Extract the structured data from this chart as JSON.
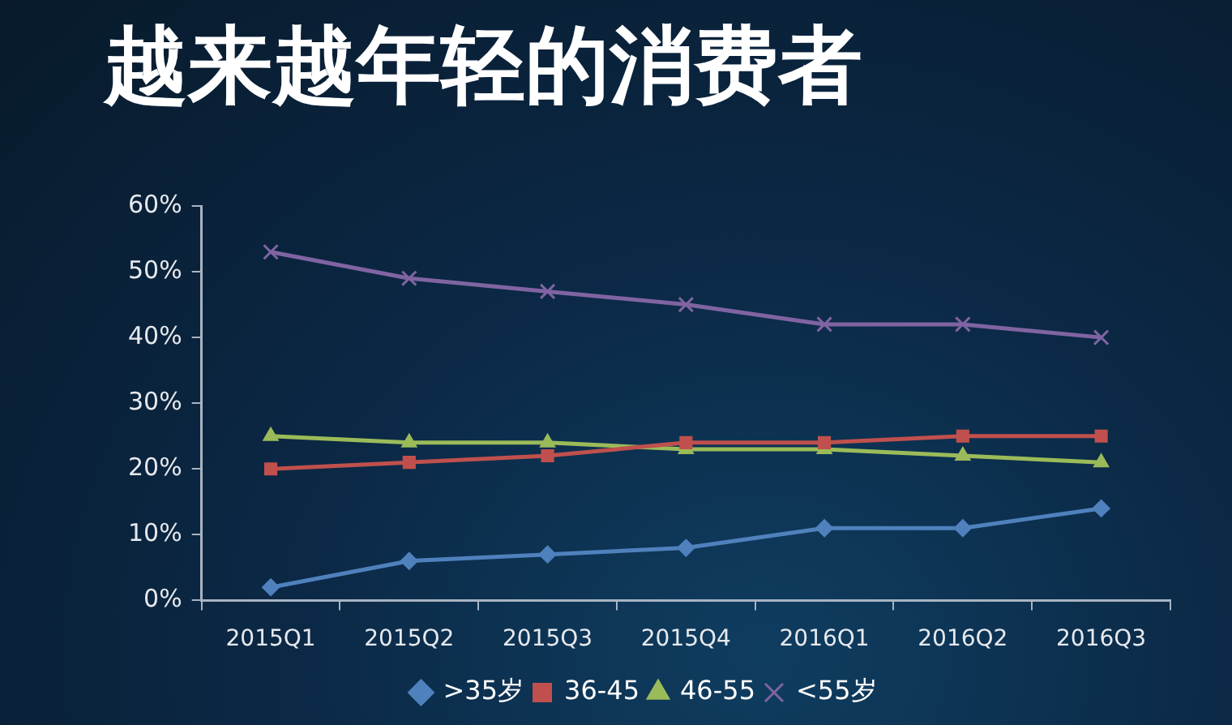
{
  "chart_data": {
    "type": "line",
    "title": "越来越年轻的消费者",
    "categories": [
      "2015Q1",
      "2015Q2",
      "2015Q3",
      "2015Q4",
      "2016Q1",
      "2016Q2",
      "2016Q3"
    ],
    "series": [
      {
        "name": ">35岁",
        "color": "#4f81bd",
        "marker": "diamond",
        "values": [
          2,
          6,
          7,
          8,
          11,
          11,
          14
        ]
      },
      {
        "name": "36-45",
        "color": "#c0504d",
        "marker": "square",
        "values": [
          20,
          21,
          22,
          24,
          24,
          25,
          25
        ]
      },
      {
        "name": "46-55",
        "color": "#9bbb59",
        "marker": "triangle",
        "values": [
          25,
          24,
          24,
          23,
          23,
          22,
          21
        ]
      },
      {
        "name": "<55岁",
        "color": "#8064a2",
        "marker": "cross",
        "values": [
          53,
          49,
          47,
          45,
          42,
          42,
          40
        ]
      }
    ],
    "ylim": [
      0,
      60
    ],
    "yticks": [
      {
        "value": 0,
        "label": "0%"
      },
      {
        "value": 10,
        "label": "10%"
      },
      {
        "value": 20,
        "label": "20%"
      },
      {
        "value": 30,
        "label": "30%"
      },
      {
        "value": 40,
        "label": "40%"
      },
      {
        "value": 50,
        "label": "50%"
      },
      {
        "value": 60,
        "label": "60%"
      }
    ],
    "legend": "bottom",
    "line_style": "solid"
  }
}
